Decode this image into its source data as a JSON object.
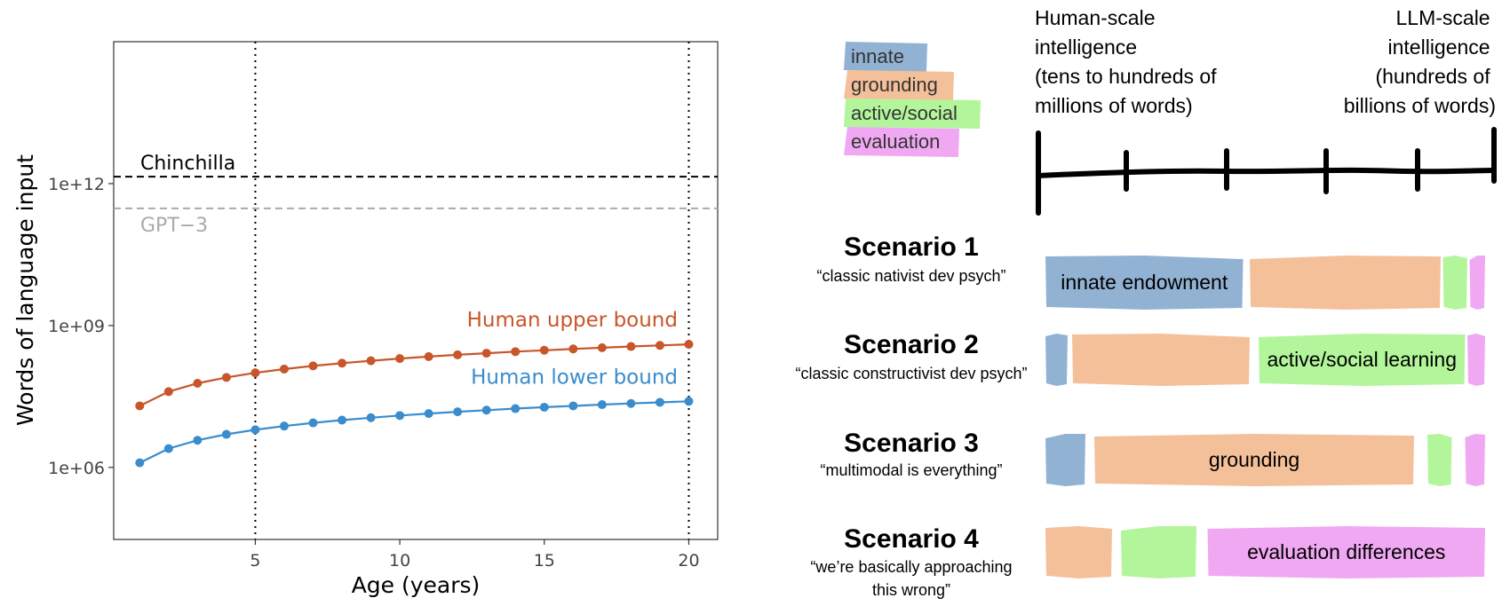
{
  "chart_data": {
    "type": "line",
    "xlabel": "Age (years)",
    "ylabel": "Words of language input",
    "y_scale": "log10",
    "xlim": [
      0.1,
      21
    ],
    "ylim": [
      30000,
      1000000000000000
    ],
    "x_ticks": [
      5,
      10,
      15,
      20
    ],
    "x_tick_labels": [
      "5",
      "10",
      "15",
      "20"
    ],
    "y_ticks": [
      1000000,
      1000000000,
      1000000000000
    ],
    "y_tick_labels": [
      "1e+06",
      "1e+09",
      "1e+12"
    ],
    "grid": false,
    "vlines": [
      5,
      20
    ],
    "hlines": [
      {
        "name": "Chinchilla",
        "value": 1400000000000,
        "color": "#000000"
      },
      {
        "name": "GPT−3",
        "value": 300000000000,
        "color": "#aaaaaa"
      }
    ],
    "x": [
      1,
      2,
      3,
      4,
      5,
      6,
      7,
      8,
      9,
      10,
      11,
      12,
      13,
      14,
      15,
      16,
      17,
      18,
      19,
      20
    ],
    "series": [
      {
        "name": "Human upper bound",
        "color": "#c9552a",
        "values": [
          20000000,
          40000000,
          60000000,
          80000000,
          100000000,
          120000000,
          140000000,
          160000000,
          180000000,
          200000000,
          220000000,
          240000000,
          260000000,
          280000000,
          300000000,
          320000000,
          340000000,
          360000000,
          380000000,
          400000000
        ]
      },
      {
        "name": "Human lower bound",
        "color": "#3a8ccc",
        "values": [
          1250000,
          2500000,
          3750000,
          5000000,
          6250000,
          7500000,
          8750000,
          10000000,
          11250000,
          12500000,
          13750000,
          15000000,
          16250000,
          17500000,
          18750000,
          20000000,
          21250000,
          22500000,
          23750000,
          25000000
        ]
      }
    ]
  },
  "diagram": {
    "legend": [
      {
        "label": "innate",
        "color": "#92b2d4"
      },
      {
        "label": "grounding",
        "color": "#f4c09a"
      },
      {
        "label": "active/social",
        "color": "#b3f59b"
      },
      {
        "label": "evaluation",
        "color": "#f0a8f2"
      }
    ],
    "scale_left": [
      "Human-scale",
      "intelligence",
      "(tens to hundreds of",
      "millions of words)"
    ],
    "scale_right": [
      "LLM-scale",
      "intelligence",
      "(hundreds of",
      "billions of words)"
    ],
    "scenarios": [
      {
        "title": "Scenario 1",
        "subtitle": [
          "“classic nativist dev psych”"
        ],
        "bars": [
          {
            "category": "innate",
            "start": 0.01,
            "end": 0.455,
            "label": "innate endowment"
          },
          {
            "category": "grounding",
            "start": 0.47,
            "end": 0.9,
            "label": ""
          },
          {
            "category": "active/social",
            "start": 0.905,
            "end": 0.96,
            "label": ""
          },
          {
            "category": "evaluation",
            "start": 0.965,
            "end": 1.0,
            "label": ""
          }
        ]
      },
      {
        "title": "Scenario 2",
        "subtitle": [
          "“classic constructivist dev psych”"
        ],
        "bars": [
          {
            "category": "innate",
            "start": 0.01,
            "end": 0.06,
            "label": ""
          },
          {
            "category": "grounding",
            "start": 0.07,
            "end": 0.47,
            "label": ""
          },
          {
            "category": "active/social",
            "start": 0.49,
            "end": 0.955,
            "label": "active/social learning"
          },
          {
            "category": "evaluation",
            "start": 0.96,
            "end": 1.0,
            "label": ""
          }
        ]
      },
      {
        "title": "Scenario 3",
        "subtitle": [
          "“multimodal is everything”"
        ],
        "bars": [
          {
            "category": "innate",
            "start": 0.01,
            "end": 0.1,
            "label": ""
          },
          {
            "category": "grounding",
            "start": 0.12,
            "end": 0.84,
            "label": "grounding"
          },
          {
            "category": "active/social",
            "start": 0.87,
            "end": 0.925,
            "label": ""
          },
          {
            "category": "evaluation",
            "start": 0.955,
            "end": 1.0,
            "label": ""
          }
        ]
      },
      {
        "title": "Scenario 4",
        "subtitle": [
          "“we’re basically approaching",
          "this wrong”"
        ],
        "bars": [
          {
            "category": "grounding",
            "start": 0.01,
            "end": 0.16,
            "label": ""
          },
          {
            "category": "active/social",
            "start": 0.18,
            "end": 0.35,
            "label": ""
          },
          {
            "category": "evaluation",
            "start": 0.375,
            "end": 1.0,
            "label": "evaluation differences"
          }
        ]
      }
    ]
  }
}
